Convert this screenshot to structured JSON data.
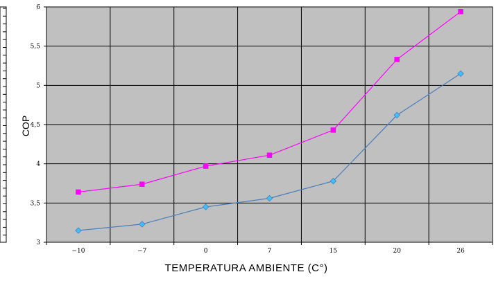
{
  "chart_data": {
    "type": "line",
    "title": "",
    "xlabel": "TEMPERATURA AMBIENTE (C°)",
    "ylabel": "COP",
    "categories": [
      "-10",
      "-7",
      "0",
      "7",
      "15",
      "20",
      "26"
    ],
    "y_ticks": [
      "3",
      "3,5",
      "4",
      "4,5",
      "5",
      "5,5",
      "6"
    ],
    "ylim": [
      3,
      6
    ],
    "grid": true,
    "plot_background": "#c0c0c0",
    "series": [
      {
        "color": "#ff00ff",
        "marker": "square",
        "values": [
          3.64,
          3.74,
          3.97,
          4.11,
          4.43,
          5.33,
          5.94
        ]
      },
      {
        "color": "#4a7ebb",
        "marker_fill": "#3cc0ff",
        "marker": "diamond",
        "values": [
          3.15,
          3.23,
          3.45,
          3.56,
          3.78,
          4.62,
          5.15
        ]
      }
    ]
  }
}
